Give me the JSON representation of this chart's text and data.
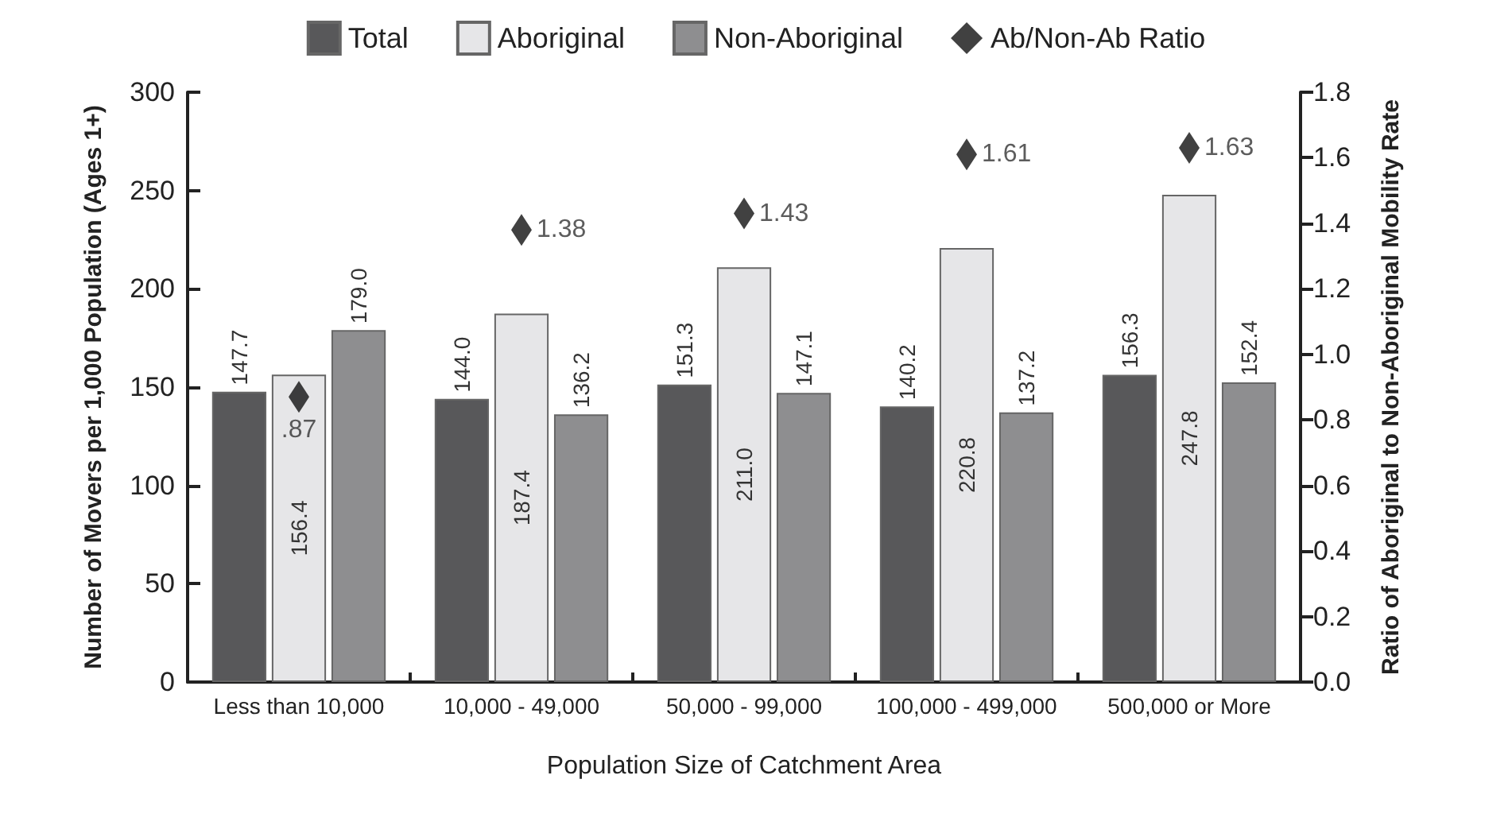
{
  "chart_data": {
    "type": "bar",
    "xlabel": "Population Size of Catchment Area",
    "ylabel": "Number of Movers per 1,000 Population (Ages 1+)",
    "y2label": "Ratio of Aboriginal to Non-Aboriginal Mobility Rate",
    "categories": [
      "Less than 10,000",
      "10,000 - 49,000",
      "50,000 - 99,000",
      "100,000 - 499,000",
      "500,000 or More"
    ],
    "series": [
      {
        "name": "Total",
        "color": "#58585a",
        "values": [
          147.7,
          144.0,
          151.3,
          140.2,
          156.3
        ],
        "value_labels": [
          "147.7",
          "144.0",
          "151.3",
          "140.2",
          "156.3"
        ]
      },
      {
        "name": "Aboriginal",
        "color": "#e6e6e8",
        "values": [
          156.4,
          187.4,
          211.0,
          220.8,
          247.8
        ],
        "value_labels": [
          "156.4",
          "187.4",
          "211.0",
          "220.8",
          "247.8"
        ]
      },
      {
        "name": "Non-Aboriginal",
        "color": "#8e8e90",
        "values": [
          179.0,
          136.2,
          147.1,
          137.2,
          152.4
        ],
        "value_labels": [
          "179.0",
          "136.2",
          "147.1",
          "137.2",
          "152.4"
        ]
      },
      {
        "name": "Ab/Non-Ab Ratio",
        "type": "scatter",
        "axis": "y2",
        "marker": "diamond",
        "color": "#111111",
        "values": [
          0.87,
          1.38,
          1.43,
          1.61,
          1.63
        ],
        "value_labels": [
          ".87",
          "1.38",
          "1.43",
          "1.61",
          "1.63"
        ]
      }
    ],
    "ylim": [
      0,
      300
    ],
    "yticks": [
      0,
      50,
      100,
      150,
      200,
      250,
      300
    ],
    "y2lim": [
      0,
      1.8
    ],
    "y2ticks": [
      {
        "value": 0,
        "label": "0.0"
      },
      {
        "value": 0.2,
        "label": "0.2"
      },
      {
        "value": 0.4,
        "label": "0.4"
      },
      {
        "value": 0.6,
        "label": "0.6"
      },
      {
        "value": 0.8,
        "label": "0.8"
      },
      {
        "value": 1.0,
        "label": "1.0"
      },
      {
        "value": 1.2,
        "label": "1.2"
      },
      {
        "value": 1.4,
        "label": "1.4"
      },
      {
        "value": 1.6,
        "label": "1.6"
      },
      {
        "value": 1.8,
        "label": "1.8"
      }
    ],
    "grid": false,
    "legend": "top"
  }
}
